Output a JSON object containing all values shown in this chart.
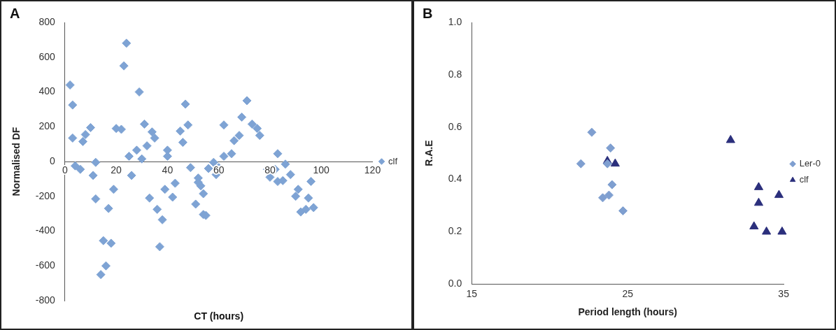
{
  "chart_data": [
    {
      "type": "scatter",
      "title": "A",
      "xlabel": "CT (hours)",
      "ylabel": "Normalised DF",
      "marker": "diamond",
      "legend": "right",
      "grid": false,
      "xlim": [
        0,
        120
      ],
      "xticks": [
        0,
        20,
        40,
        60,
        80,
        100,
        120
      ],
      "ylim": [
        -800,
        800
      ],
      "yticks": [
        -800,
        -600,
        -400,
        -200,
        0,
        200,
        400,
        600,
        800
      ],
      "series": [
        {
          "name": "clf",
          "color": "#7ea3d4",
          "x": [
            2,
            3,
            3,
            4,
            6,
            7,
            8,
            10,
            12,
            11,
            12,
            17,
            15,
            18,
            14,
            16,
            19,
            20,
            22,
            24,
            23,
            26,
            29,
            25,
            28,
            30,
            31,
            34,
            35,
            32,
            33,
            36,
            38,
            37,
            40,
            40,
            39,
            42,
            43,
            45,
            46,
            48,
            49,
            52,
            51,
            54,
            53,
            54,
            55,
            52,
            56,
            58,
            60,
            59,
            62,
            65,
            66,
            68,
            62,
            71,
            69,
            73,
            75,
            76,
            79,
            82,
            80,
            83,
            83,
            86,
            88,
            85,
            96,
            91,
            90,
            95,
            97,
            92,
            94,
            47
          ],
          "values": [
            440,
            325,
            135,
            -25,
            -45,
            115,
            155,
            195,
            -5,
            -80,
            -215,
            -270,
            -455,
            -470,
            -650,
            -600,
            -160,
            190,
            185,
            680,
            550,
            -80,
            400,
            30,
            65,
            15,
            215,
            170,
            135,
            90,
            -210,
            -275,
            -335,
            -490,
            65,
            30,
            -160,
            -205,
            -125,
            175,
            110,
            210,
            -35,
            -95,
            -245,
            -305,
            -140,
            -185,
            -310,
            -120,
            -40,
            -5,
            -35,
            -75,
            30,
            45,
            120,
            150,
            210,
            350,
            255,
            215,
            190,
            150,
            -45,
            -45,
            -90,
            -115,
            45,
            -15,
            -75,
            -110,
            -115,
            -160,
            -200,
            -210,
            -265,
            -290,
            -275,
            330
          ]
        }
      ]
    },
    {
      "type": "scatter",
      "title": "B",
      "xlabel": "Period length (hours)",
      "ylabel": "R.A.E",
      "legend": "right",
      "grid": false,
      "xlim": [
        15,
        35
      ],
      "xticks": [
        15,
        25,
        35
      ],
      "ylim": [
        0,
        1
      ],
      "yticks": [
        {
          "value": 0,
          "label": "0.0"
        },
        0.2,
        0.4,
        0.6,
        0.8,
        {
          "value": 1,
          "label": "1.0"
        }
      ],
      "series": [
        {
          "name": "Ler-0",
          "color": "#7f9fd0",
          "marker": "diamond",
          "x": [
            22.0,
            22.7,
            23.9,
            23.7,
            24.0,
            23.8,
            23.4,
            24.7
          ],
          "values": [
            0.46,
            0.58,
            0.52,
            0.46,
            0.38,
            0.34,
            0.33,
            0.28
          ]
        },
        {
          "name": "clf",
          "color": "#2b2f7c",
          "marker": "triangle",
          "x": [
            31.6,
            23.7,
            24.2,
            33.4,
            33.4,
            34.7,
            33.1,
            33.9,
            34.9
          ],
          "values": [
            0.55,
            0.47,
            0.46,
            0.37,
            0.31,
            0.34,
            0.22,
            0.2,
            0.2
          ]
        }
      ]
    }
  ]
}
